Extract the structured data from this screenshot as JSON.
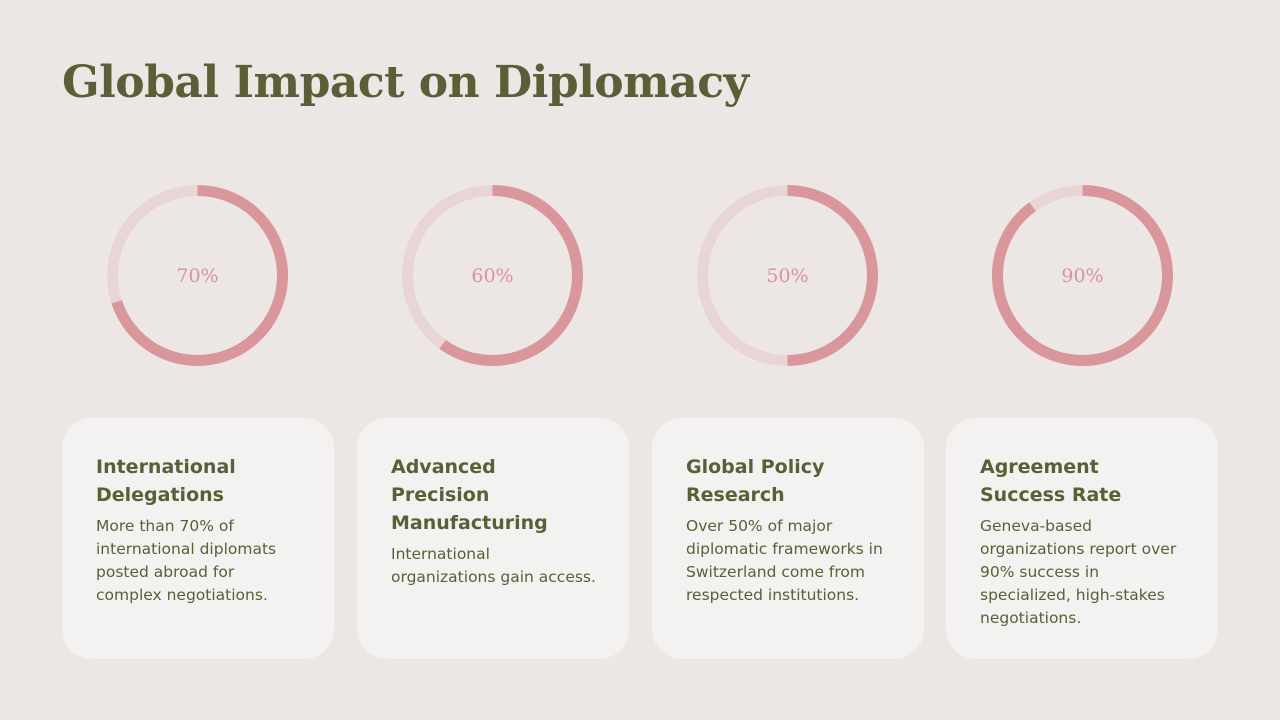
{
  "slide": {
    "title": "Global Impact on Diplomacy"
  },
  "colors": {
    "background": "#ECE7E5",
    "accent_green": "#5A5F37",
    "ring_fill": "#D9969B",
    "ring_track": "#EAD5D6",
    "card_background": "#F3F2F1"
  },
  "chart_data": [
    {
      "type": "pie",
      "values": [
        70
      ],
      "max": 100,
      "label": "70%"
    },
    {
      "type": "pie",
      "values": [
        60
      ],
      "max": 100,
      "label": "60%"
    },
    {
      "type": "pie",
      "values": [
        50
      ],
      "max": 100,
      "label": "50%"
    },
    {
      "type": "pie",
      "values": [
        90
      ],
      "max": 100,
      "label": "90%"
    }
  ],
  "cards": [
    {
      "title": "International Delegations",
      "description": "More than 70% of international diplomats posted abroad for complex negotiations."
    },
    {
      "title": "Advanced Precision Manufacturing",
      "description": "International organizations gain access."
    },
    {
      "title": "Global Policy Research",
      "description": "Over 50% of major diplomatic frameworks in Switzerland come from respected institutions."
    },
    {
      "title": "Agreement Success Rate",
      "description": "Geneva-based organizations report over 90% success in specialized, high-stakes negotiations."
    }
  ]
}
